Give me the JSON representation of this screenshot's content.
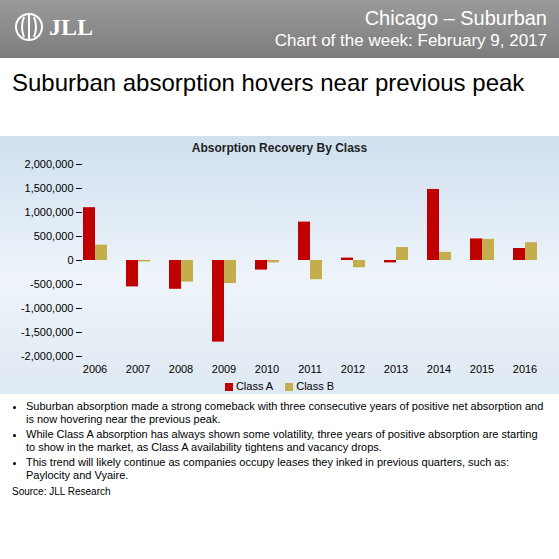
{
  "header": {
    "logo": "JLL",
    "region": "Chicago – Suburban",
    "subtitle": "Chart of the week: February 9, 2017"
  },
  "headline": "Suburban absorption hovers near previous peak",
  "chart_data": {
    "type": "bar",
    "title": "Absorption Recovery By Class",
    "categories": [
      "2006",
      "2007",
      "2008",
      "2009",
      "2010",
      "2011",
      "2012",
      "2013",
      "2014",
      "2015",
      "2016"
    ],
    "series": [
      {
        "name": "Class A",
        "color": "#c00000",
        "values": [
          1100000,
          -550000,
          -600000,
          -1700000,
          -200000,
          800000,
          50000,
          -50000,
          1480000,
          450000,
          250000
        ]
      },
      {
        "name": "Class B",
        "color": "#c4ad4c",
        "values": [
          320000,
          -30000,
          -450000,
          -480000,
          -50000,
          -400000,
          -150000,
          270000,
          170000,
          440000,
          370000
        ]
      }
    ],
    "ylim": [
      -2000000,
      2000000
    ],
    "yticks": [
      {
        "value": -2000000,
        "label": "-2,000,000"
      },
      {
        "value": -1500000,
        "label": "-1,500,000"
      },
      {
        "value": -1000000,
        "label": "-1,000,000"
      },
      {
        "value": -500000,
        "label": "-500,000"
      },
      0,
      {
        "value": 500000,
        "label": "500,000"
      },
      {
        "value": 1000000,
        "label": "1,000,000"
      },
      {
        "value": 1500000,
        "label": "1,500,000"
      },
      {
        "value": 2000000,
        "label": "2,000,000"
      }
    ],
    "grid": false,
    "legend": "bottom"
  },
  "bullets": [
    "Suburban absorption made a strong comeback with three consecutive years of positive net absorption and is now hovering near the previous peak.",
    "While Class A absorption has always shown some volatility, three years of positive absorption are starting to show in the market, as Class A availability tightens and vacancy drops.",
    "This trend will likely continue as companies occupy leases they inked in previous quarters, such as: Paylocity and Vyaire."
  ],
  "source": "Source: JLL Research"
}
